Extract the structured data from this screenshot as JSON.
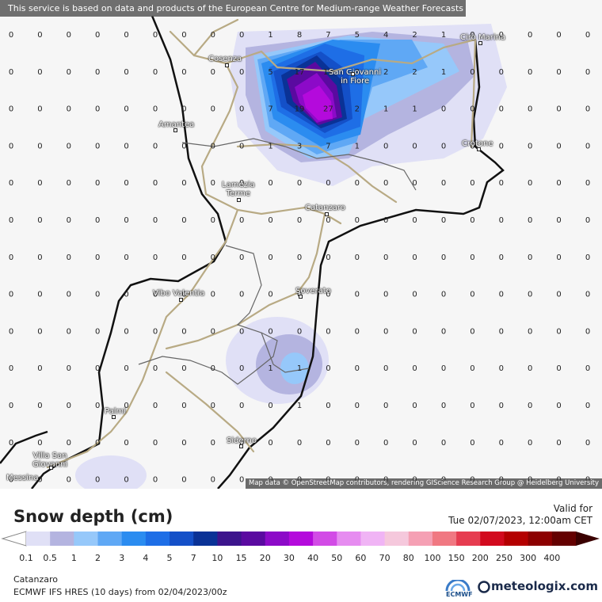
{
  "banner": "This service is based on data and products of the European Centre for Medium-range Weather Forecasts (ECMWF)",
  "attribution": "Map data © OpenStreetMap contributors, rendering GIScience Research Group @ Heidelberg University",
  "cities": [
    {
      "name": "Cosenza"
    },
    {
      "name": "San Giovanni\nin Fiore"
    },
    {
      "name": "Cirò Marina"
    },
    {
      "name": "Amantea"
    },
    {
      "name": "Crotone"
    },
    {
      "name": "Lamezia\nTerme"
    },
    {
      "name": "Catanzaro"
    },
    {
      "name": "Vibo Valentia"
    },
    {
      "name": "Soverato"
    },
    {
      "name": "Palmi"
    },
    {
      "name": "Siderno"
    },
    {
      "name": "Villa San\nGiovanni"
    },
    {
      "name": "Messina"
    }
  ],
  "grid_values": [
    [
      "0",
      "0",
      "0",
      "0",
      "0",
      "0",
      "0",
      "0",
      "0",
      "1",
      "8",
      "7",
      "5",
      "4",
      "2",
      "1",
      "0",
      "0",
      "0",
      "0",
      "0"
    ],
    [
      "0",
      "0",
      "0",
      "0",
      "0",
      "0",
      "0",
      "0",
      "0",
      "5",
      "17",
      "12",
      "3",
      "2",
      "2",
      "1",
      "0",
      "0",
      "0",
      "0",
      "0"
    ],
    [
      "0",
      "0",
      "0",
      "0",
      "0",
      "0",
      "0",
      "0",
      "0",
      "7",
      "19",
      "27",
      "2",
      "1",
      "1",
      "0",
      "0",
      "0",
      "0",
      "0",
      "0"
    ],
    [
      "0",
      "0",
      "0",
      "0",
      "0",
      "0",
      "0",
      "0",
      "0",
      "1",
      "3",
      "7",
      "1",
      "0",
      "0",
      "0",
      "0",
      "0",
      "0",
      "0",
      "0"
    ],
    [
      "0",
      "0",
      "0",
      "0",
      "0",
      "0",
      "0",
      "0",
      "0",
      "0",
      "0",
      "0",
      "0",
      "0",
      "0",
      "0",
      "0",
      "0",
      "0",
      "0",
      "0"
    ],
    [
      "0",
      "0",
      "0",
      "0",
      "0",
      "0",
      "0",
      "0",
      "0",
      "0",
      "0",
      "0",
      "0",
      "0",
      "0",
      "0",
      "0",
      "0",
      "0",
      "0",
      "0"
    ],
    [
      "0",
      "0",
      "0",
      "0",
      "0",
      "0",
      "0",
      "0",
      "0",
      "0",
      "0",
      "0",
      "0",
      "0",
      "0",
      "0",
      "0",
      "0",
      "0",
      "0",
      "0"
    ],
    [
      "0",
      "0",
      "0",
      "0",
      "0",
      "0",
      "0",
      "0",
      "0",
      "0",
      "0",
      "0",
      "0",
      "0",
      "0",
      "0",
      "0",
      "0",
      "0",
      "0",
      "0"
    ],
    [
      "0",
      "0",
      "0",
      "0",
      "0",
      "0",
      "0",
      "0",
      "0",
      "0",
      "0",
      "0",
      "0",
      "0",
      "0",
      "0",
      "0",
      "0",
      "0",
      "0",
      "0"
    ],
    [
      "0",
      "0",
      "0",
      "0",
      "0",
      "0",
      "0",
      "0",
      "0",
      "1",
      "1",
      "0",
      "0",
      "0",
      "0",
      "0",
      "0",
      "0",
      "0",
      "0",
      "0"
    ],
    [
      "0",
      "0",
      "0",
      "0",
      "0",
      "0",
      "0",
      "0",
      "0",
      "0",
      "1",
      "0",
      "0",
      "0",
      "0",
      "0",
      "0",
      "0",
      "0",
      "0",
      "0"
    ],
    [
      "0",
      "0",
      "0",
      "0",
      "0",
      "0",
      "0",
      "0",
      "0",
      "0",
      "0",
      "0",
      "0",
      "0",
      "0",
      "0",
      "0",
      "0",
      "0",
      "0",
      "0"
    ],
    [
      "0",
      "0",
      "0",
      "0",
      "0",
      "0",
      "0",
      "0",
      "0",
      "0",
      "0",
      "0",
      "0",
      "0",
      "0",
      "0",
      "0",
      "0",
      "0",
      "0",
      "0"
    ]
  ],
  "legend": {
    "title": "Snow depth (cm)",
    "valid_for": "Valid for",
    "valid_time": "Tue 02/07/2023, 12:00am CET",
    "ticks": [
      "0.1",
      "0.5",
      "1",
      "2",
      "3",
      "4",
      "5",
      "7",
      "10",
      "15",
      "20",
      "30",
      "40",
      "50",
      "60",
      "70",
      "80",
      "100",
      "150",
      "200",
      "250",
      "300",
      "400"
    ],
    "colors": [
      "#e0e0f6",
      "#b4b4e0",
      "#96c8fa",
      "#5fa8f5",
      "#2b8cf0",
      "#1e6ee6",
      "#1450c8",
      "#0a3296",
      "#3c148c",
      "#5a0aa0",
      "#8c0ac8",
      "#b40adc",
      "#d24be6",
      "#e68cf0",
      "#f0b4f5",
      "#f5c8dc",
      "#f5a0b4",
      "#f07882",
      "#e63c50",
      "#d20a1e",
      "#b40000",
      "#8c0000",
      "#640000"
    ],
    "location": "Catanzaro",
    "model": "ECMWF IFS HRES (10 days) from 02/04/2023/00z",
    "ecmwf_logo": "ECMWF",
    "brand": "meteologix.com"
  }
}
